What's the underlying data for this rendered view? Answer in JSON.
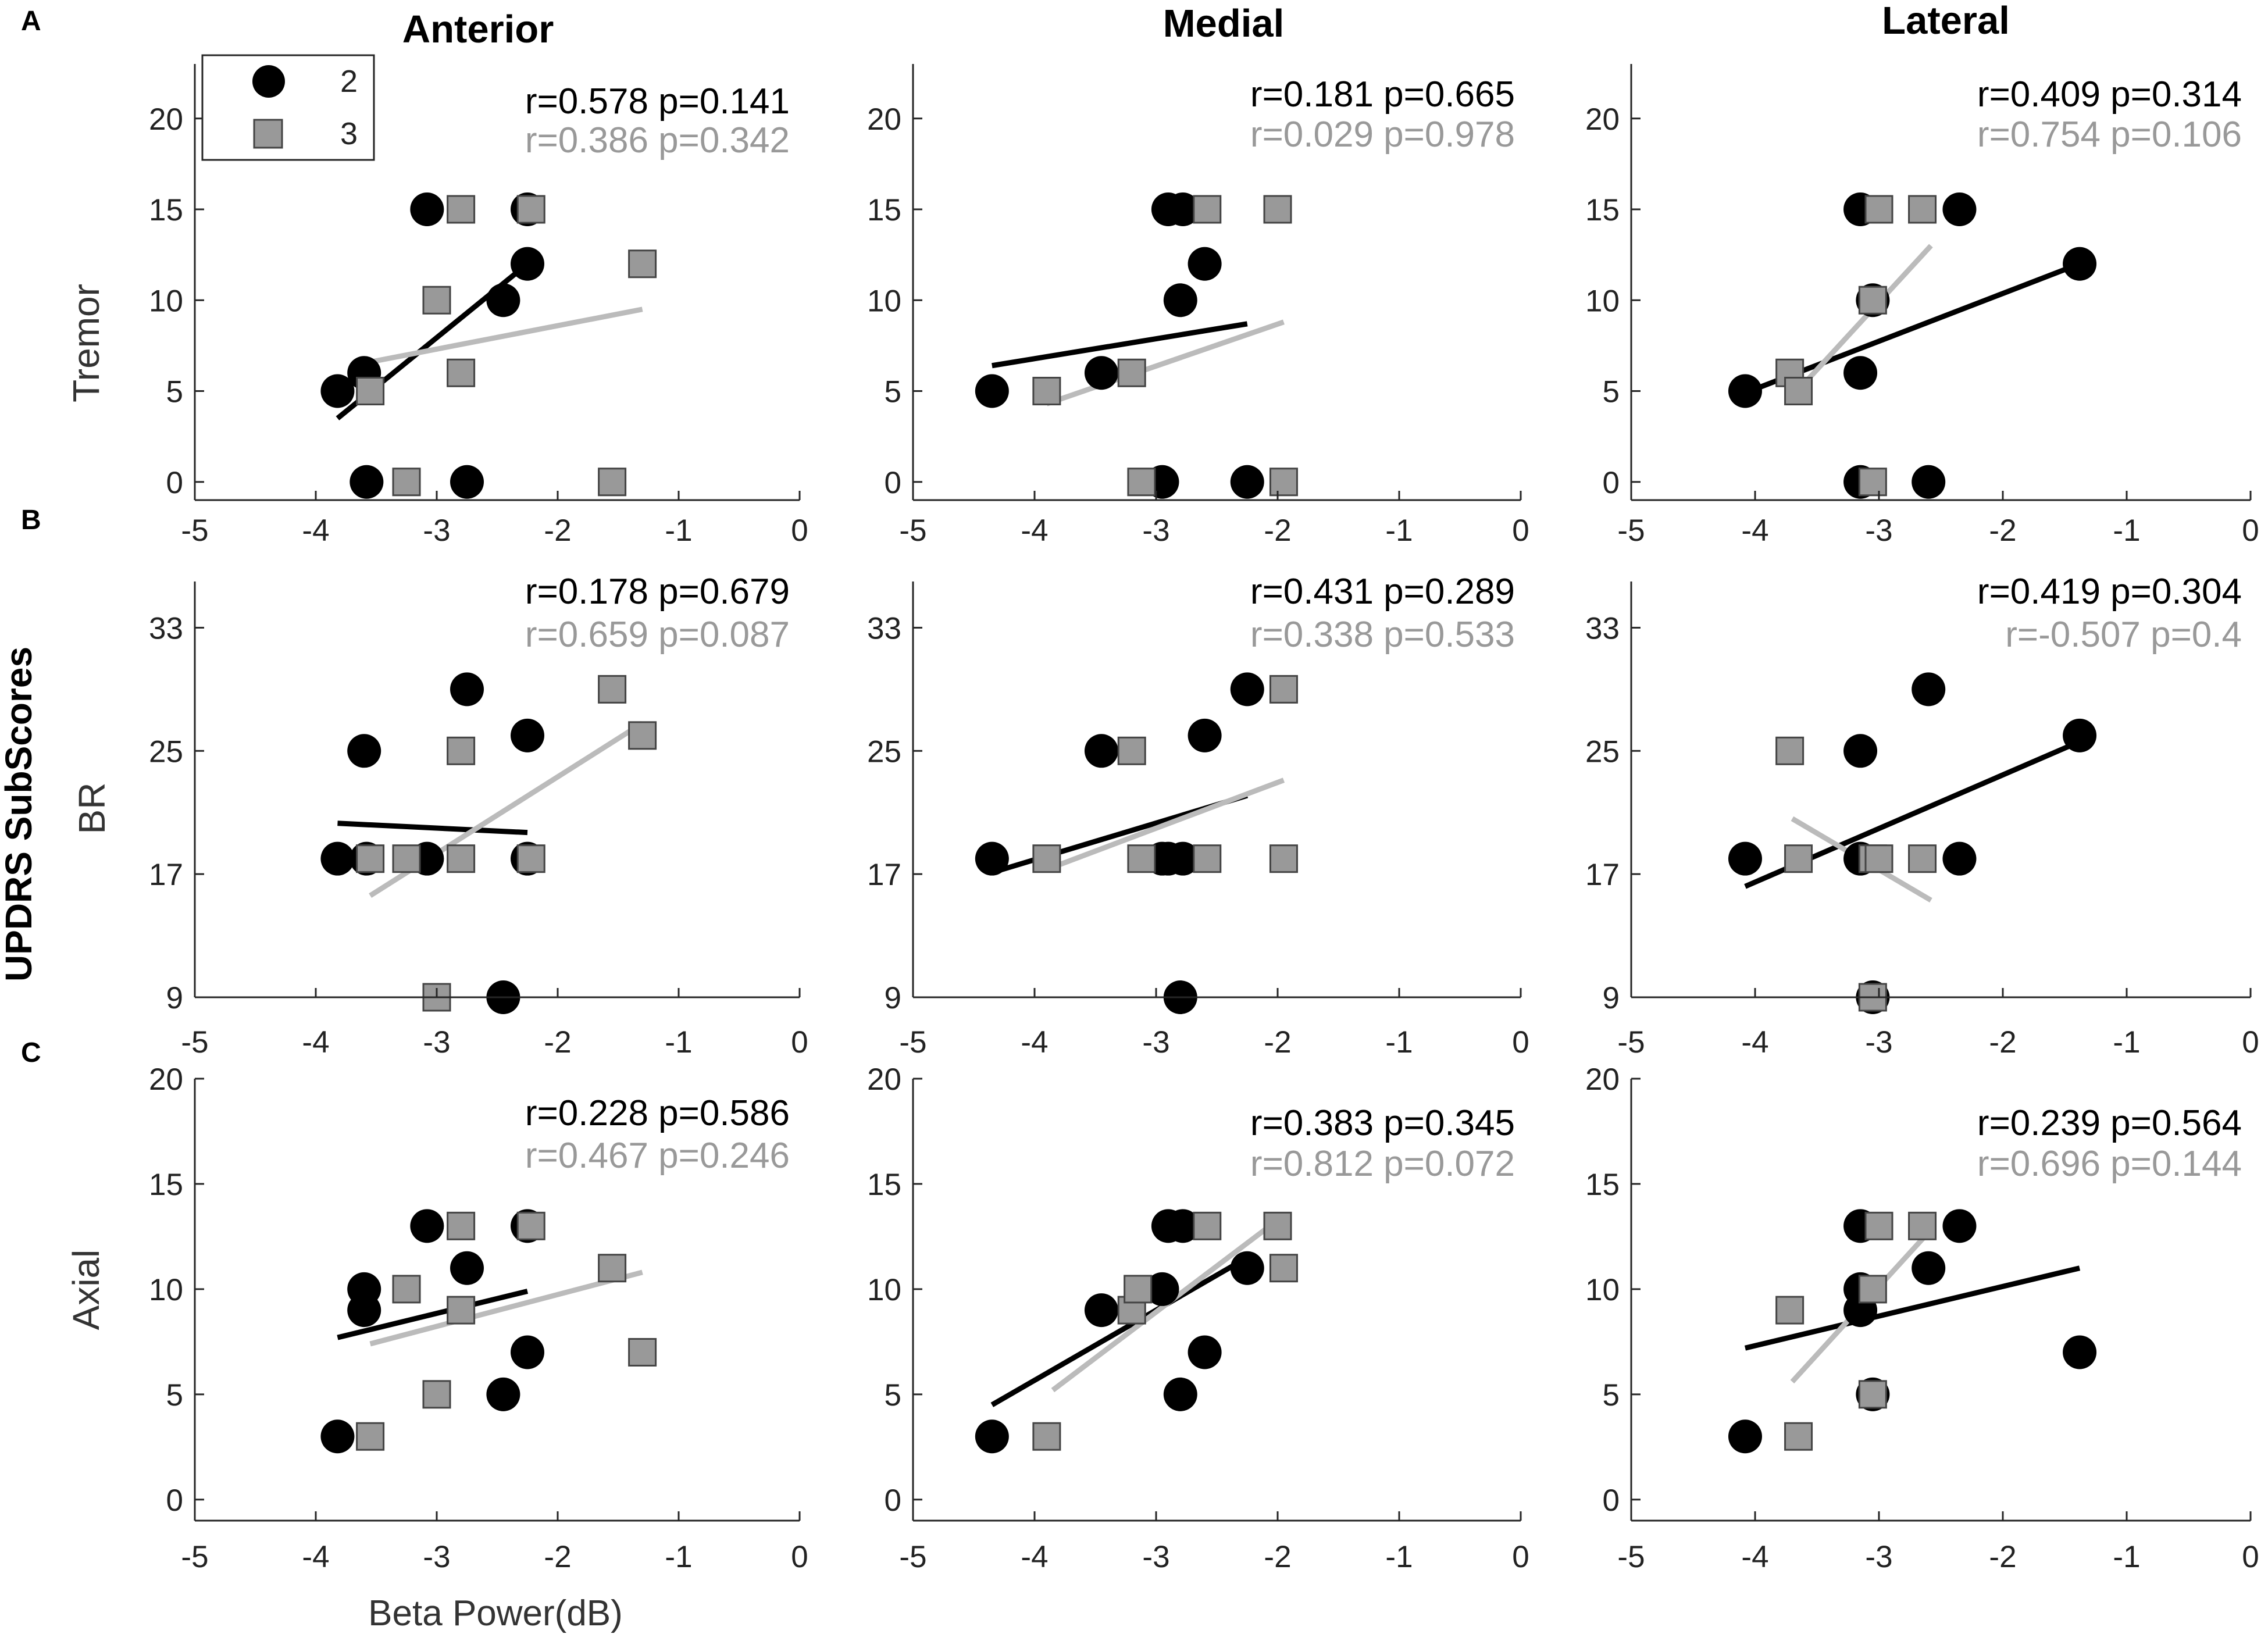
{
  "figure": {
    "col_titles": [
      "Anterior",
      "Medial",
      "Lateral"
    ],
    "row_labels": [
      "Tremor",
      "BR",
      "Axial"
    ],
    "panel_labels": [
      "A",
      "B",
      "C"
    ],
    "super_ylabel": "UPDRS SubScores",
    "xlabel": "Beta Power(dB)",
    "legend": [
      {
        "label": "2",
        "marker": "circle",
        "color": "#000000"
      },
      {
        "label": "3",
        "marker": "square",
        "color": "#999999"
      }
    ],
    "colors": {
      "series2": "#000000",
      "series3": "#999999",
      "series3_fit": "#bbbbbb",
      "axis": "#262626",
      "stat3": "#999999"
    }
  },
  "chart_data": [
    {
      "type": "scatter",
      "row": 0,
      "col": 0,
      "ylabel": "Tremor",
      "xlim": [
        -5,
        0
      ],
      "ylim": [
        -1,
        23
      ],
      "xticks": [
        -5,
        -4,
        -3,
        -2,
        -1,
        0
      ],
      "yticks": [
        0,
        5,
        10,
        15,
        20
      ],
      "series": [
        {
          "name": "2",
          "stat": "r=0.578 p=0.141",
          "points": [
            [
              -3.82,
              5
            ],
            [
              -3.6,
              6
            ],
            [
              -3.58,
              0
            ],
            [
              -3.08,
              15
            ],
            [
              -2.75,
              0
            ],
            [
              -2.45,
              10
            ],
            [
              -2.25,
              12
            ],
            [
              -2.25,
              15
            ]
          ],
          "fit": [
            [
              -3.82,
              3.5
            ],
            [
              -2.25,
              12
            ]
          ]
        },
        {
          "name": "3",
          "stat": "r=0.386 p=0.342",
          "points": [
            [
              -3.55,
              5
            ],
            [
              -3.25,
              0
            ],
            [
              -3.0,
              10
            ],
            [
              -2.8,
              15
            ],
            [
              -2.8,
              6
            ],
            [
              -2.22,
              15
            ],
            [
              -1.55,
              0
            ],
            [
              -1.3,
              12
            ]
          ],
          "fit": [
            [
              -3.55,
              6.6
            ],
            [
              -1.3,
              9.5
            ]
          ]
        }
      ]
    },
    {
      "type": "scatter",
      "row": 0,
      "col": 1,
      "ylabel": "",
      "xlim": [
        -5,
        0
      ],
      "ylim": [
        -1,
        23
      ],
      "xticks": [
        -5,
        -4,
        -3,
        -2,
        -1,
        0
      ],
      "yticks": [
        0,
        5,
        10,
        15,
        20
      ],
      "series": [
        {
          "name": "2",
          "stat": "r=0.181 p=0.665",
          "points": [
            [
              -4.35,
              5
            ],
            [
              -3.45,
              6
            ],
            [
              -2.95,
              0
            ],
            [
              -2.9,
              15
            ],
            [
              -2.78,
              15
            ],
            [
              -2.8,
              10
            ],
            [
              -2.6,
              12
            ],
            [
              -2.25,
              0
            ]
          ],
          "fit": [
            [
              -4.35,
              6.4
            ],
            [
              -2.25,
              8.7
            ]
          ]
        },
        {
          "name": "3",
          "stat": "r=0.029 p=0.978",
          "points": [
            [
              -3.9,
              5
            ],
            [
              -3.2,
              6
            ],
            [
              -3.12,
              0
            ],
            [
              -2.58,
              15
            ],
            [
              -1.95,
              0
            ],
            [
              -2.0,
              15
            ]
          ],
          "fit": [
            [
              -3.9,
              4.3
            ],
            [
              -1.95,
              8.8
            ]
          ]
        }
      ]
    },
    {
      "type": "scatter",
      "row": 0,
      "col": 2,
      "ylabel": "",
      "xlim": [
        -5,
        0
      ],
      "ylim": [
        -1,
        23
      ],
      "xticks": [
        -5,
        -4,
        -3,
        -2,
        -1,
        0
      ],
      "yticks": [
        0,
        5,
        10,
        15,
        20
      ],
      "series": [
        {
          "name": "2",
          "stat": "r=0.409 p=0.314",
          "points": [
            [
              -4.08,
              5
            ],
            [
              -3.15,
              15
            ],
            [
              -3.15,
              6
            ],
            [
              -3.15,
              0
            ],
            [
              -3.05,
              10
            ],
            [
              -2.6,
              0
            ],
            [
              -2.35,
              15
            ],
            [
              -1.38,
              12
            ]
          ],
          "fit": [
            [
              -4.08,
              4.9
            ],
            [
              -1.38,
              12
            ]
          ]
        },
        {
          "name": "3",
          "stat": "r=0.754 p=0.106",
          "points": [
            [
              -3.72,
              6
            ],
            [
              -3.65,
              5
            ],
            [
              -3.05,
              10
            ],
            [
              -3.05,
              0
            ],
            [
              -3.0,
              15
            ],
            [
              -2.65,
              15
            ]
          ],
          "fit": [
            [
              -3.7,
              4.7
            ],
            [
              -2.58,
              13
            ]
          ]
        }
      ]
    },
    {
      "type": "scatter",
      "row": 1,
      "col": 0,
      "ylabel": "BR",
      "xlim": [
        -5,
        0
      ],
      "ylim": [
        9,
        36
      ],
      "xticks": [
        -5,
        -4,
        -3,
        -2,
        -1,
        0
      ],
      "yticks": [
        9,
        17,
        25,
        33
      ],
      "series": [
        {
          "name": "2",
          "stat": "r=0.178 p=0.679",
          "points": [
            [
              -3.82,
              18
            ],
            [
              -3.58,
              18
            ],
            [
              -3.6,
              25
            ],
            [
              -3.08,
              18
            ],
            [
              -2.75,
              29
            ],
            [
              -2.45,
              9
            ],
            [
              -2.25,
              26
            ],
            [
              -2.25,
              18
            ]
          ],
          "fit": [
            [
              -3.82,
              20.3
            ],
            [
              -2.25,
              19.7
            ]
          ]
        },
        {
          "name": "3",
          "stat": "r=0.659 p=0.087",
          "points": [
            [
              -3.55,
              18
            ],
            [
              -3.25,
              18
            ],
            [
              -3.0,
              9
            ],
            [
              -2.8,
              18
            ],
            [
              -2.8,
              25
            ],
            [
              -2.22,
              18
            ],
            [
              -1.55,
              29
            ],
            [
              -1.3,
              26
            ]
          ],
          "fit": [
            [
              -3.55,
              15.6
            ],
            [
              -1.3,
              26.8
            ]
          ]
        }
      ]
    },
    {
      "type": "scatter",
      "row": 1,
      "col": 1,
      "ylabel": "",
      "xlim": [
        -5,
        0
      ],
      "ylim": [
        9,
        36
      ],
      "xticks": [
        -5,
        -4,
        -3,
        -2,
        -1,
        0
      ],
      "yticks": [
        9,
        17,
        25,
        33
      ],
      "series": [
        {
          "name": "2",
          "stat": "r=0.431 p=0.289",
          "points": [
            [
              -4.35,
              18
            ],
            [
              -3.45,
              25
            ],
            [
              -2.95,
              18
            ],
            [
              -2.9,
              18
            ],
            [
              -2.78,
              18
            ],
            [
              -2.8,
              9
            ],
            [
              -2.6,
              26
            ],
            [
              -2.25,
              29
            ]
          ],
          "fit": [
            [
              -4.35,
              17.1
            ],
            [
              -2.25,
              22.1
            ]
          ]
        },
        {
          "name": "3",
          "stat": "r=0.338 p=0.533",
          "points": [
            [
              -3.9,
              18
            ],
            [
              -3.2,
              25
            ],
            [
              -3.12,
              18
            ],
            [
              -2.58,
              18
            ],
            [
              -1.95,
              18
            ],
            [
              -1.95,
              29
            ]
          ],
          "fit": [
            [
              -3.9,
              17.3
            ],
            [
              -1.95,
              23.1
            ]
          ]
        }
      ]
    },
    {
      "type": "scatter",
      "row": 1,
      "col": 2,
      "ylabel": "",
      "xlim": [
        -5,
        0
      ],
      "ylim": [
        9,
        36
      ],
      "xticks": [
        -5,
        -4,
        -3,
        -2,
        -1,
        0
      ],
      "yticks": [
        9,
        17,
        25,
        33
      ],
      "series": [
        {
          "name": "2",
          "stat": "r=0.419 p=0.304",
          "points": [
            [
              -4.08,
              18
            ],
            [
              -3.15,
              25
            ],
            [
              -3.15,
              18
            ],
            [
              -3.05,
              9
            ],
            [
              -2.6,
              29
            ],
            [
              -2.35,
              18
            ],
            [
              -1.38,
              26
            ]
          ],
          "fit": [
            [
              -4.08,
              16.2
            ],
            [
              -1.38,
              25.6
            ]
          ]
        },
        {
          "name": "3",
          "stat": "r=-0.507 p=0.4",
          "points": [
            [
              -3.72,
              25
            ],
            [
              -3.65,
              18
            ],
            [
              -3.05,
              18
            ],
            [
              -3.0,
              18
            ],
            [
              -3.05,
              9
            ],
            [
              -2.65,
              18
            ]
          ],
          "fit": [
            [
              -3.7,
              20.6
            ],
            [
              -2.58,
              15.3
            ]
          ]
        }
      ]
    },
    {
      "type": "scatter",
      "row": 2,
      "col": 0,
      "ylabel": "Axial",
      "xlim": [
        -5,
        0
      ],
      "ylim": [
        -1,
        20
      ],
      "xticks": [
        -5,
        -4,
        -3,
        -2,
        -1,
        0
      ],
      "yticks": [
        0,
        5,
        10,
        15,
        20
      ],
      "series": [
        {
          "name": "2",
          "stat": "r=0.228 p=0.586",
          "points": [
            [
              -3.82,
              3
            ],
            [
              -3.6,
              10
            ],
            [
              -3.6,
              9
            ],
            [
              -3.08,
              13
            ],
            [
              -2.75,
              11
            ],
            [
              -2.45,
              5
            ],
            [
              -2.25,
              13
            ],
            [
              -2.25,
              7
            ]
          ],
          "fit": [
            [
              -3.82,
              7.7
            ],
            [
              -2.25,
              9.9
            ]
          ]
        },
        {
          "name": "3",
          "stat": "r=0.467 p=0.246",
          "points": [
            [
              -3.55,
              3
            ],
            [
              -3.25,
              10
            ],
            [
              -3.0,
              5
            ],
            [
              -2.8,
              13
            ],
            [
              -2.8,
              9
            ],
            [
              -2.22,
              13
            ],
            [
              -1.55,
              11
            ],
            [
              -1.3,
              7
            ]
          ],
          "fit": [
            [
              -3.55,
              7.4
            ],
            [
              -1.3,
              10.8
            ]
          ]
        }
      ]
    },
    {
      "type": "scatter",
      "row": 2,
      "col": 1,
      "ylabel": "",
      "xlim": [
        -5,
        0
      ],
      "ylim": [
        -1,
        20
      ],
      "xticks": [
        -5,
        -4,
        -3,
        -2,
        -1,
        0
      ],
      "yticks": [
        0,
        5,
        10,
        15,
        20
      ],
      "series": [
        {
          "name": "2",
          "stat": "r=0.383 p=0.345",
          "points": [
            [
              -4.35,
              3
            ],
            [
              -3.45,
              9
            ],
            [
              -2.95,
              10
            ],
            [
              -2.9,
              13
            ],
            [
              -2.78,
              13
            ],
            [
              -2.8,
              5
            ],
            [
              -2.6,
              7
            ],
            [
              -2.25,
              11
            ]
          ],
          "fit": [
            [
              -4.35,
              4.5
            ],
            [
              -2.25,
              11.5
            ]
          ]
        },
        {
          "name": "3",
          "stat": "r=0.812 p=0.072",
          "points": [
            [
              -3.9,
              3
            ],
            [
              -3.2,
              9
            ],
            [
              -3.15,
              10
            ],
            [
              -2.58,
              13
            ],
            [
              -2.0,
              13
            ],
            [
              -1.95,
              11
            ]
          ],
          "fit": [
            [
              -3.85,
              5.2
            ],
            [
              -1.95,
              13.5
            ]
          ]
        }
      ]
    },
    {
      "type": "scatter",
      "row": 2,
      "col": 2,
      "ylabel": "",
      "xlim": [
        -5,
        0
      ],
      "ylim": [
        -1,
        20
      ],
      "xticks": [
        -5,
        -4,
        -3,
        -2,
        -1,
        0
      ],
      "yticks": [
        0,
        5,
        10,
        15,
        20
      ],
      "series": [
        {
          "name": "2",
          "stat": "r=0.239 p=0.564",
          "points": [
            [
              -4.08,
              3
            ],
            [
              -3.15,
              13
            ],
            [
              -3.15,
              10
            ],
            [
              -3.15,
              9
            ],
            [
              -3.05,
              5
            ],
            [
              -2.6,
              11
            ],
            [
              -2.35,
              13
            ],
            [
              -1.38,
              7
            ]
          ],
          "fit": [
            [
              -4.08,
              7.2
            ],
            [
              -1.38,
              11
            ]
          ]
        },
        {
          "name": "3",
          "stat": "r=0.696 p=0.144",
          "points": [
            [
              -3.72,
              9
            ],
            [
              -3.65,
              3
            ],
            [
              -3.05,
              10
            ],
            [
              -3.0,
              13
            ],
            [
              -3.05,
              5
            ],
            [
              -2.65,
              13
            ]
          ],
          "fit": [
            [
              -3.7,
              5.6
            ],
            [
              -2.6,
              12.7
            ]
          ]
        }
      ]
    }
  ]
}
